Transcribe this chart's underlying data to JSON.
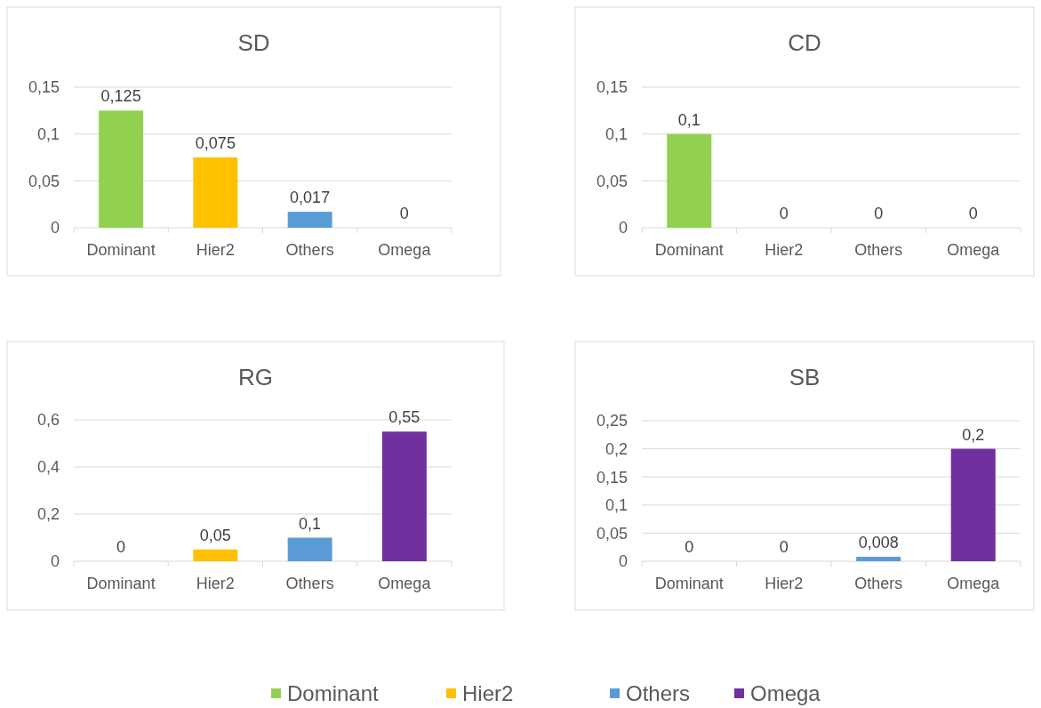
{
  "chart_data": [
    {
      "type": "bar",
      "title": "SD",
      "categories": [
        "Dominant",
        "Hier2",
        "Others",
        "Omega"
      ],
      "series": [
        {
          "name": "Dominant",
          "color": "#92d050",
          "values": [
            0.125,
            null,
            null,
            null
          ],
          "value_labels": [
            "0,125",
            null,
            null,
            null
          ]
        },
        {
          "name": "Hier2",
          "color": "#ffc000",
          "values": [
            null,
            0.075,
            null,
            null
          ],
          "value_labels": [
            null,
            "0,075",
            null,
            null
          ]
        },
        {
          "name": "Others",
          "color": "#5b9bd5",
          "values": [
            null,
            null,
            0.017,
            null
          ],
          "value_labels": [
            null,
            null,
            "0,017",
            null
          ]
        },
        {
          "name": "Omega",
          "color": "#7030a0",
          "values": [
            null,
            null,
            null,
            0
          ],
          "value_labels": [
            null,
            null,
            null,
            "0"
          ]
        }
      ],
      "ylim": [
        0,
        0.15
      ],
      "yticks": [
        {
          "value": 0,
          "label": "0"
        },
        {
          "value": 0.05,
          "label": "0,05"
        },
        {
          "value": 0.1,
          "label": "0,1"
        },
        {
          "value": 0.15,
          "label": "0,15"
        }
      ],
      "grid": "y",
      "legend": "bottom"
    },
    {
      "type": "bar",
      "title": "CD",
      "categories": [
        "Dominant",
        "Hier2",
        "Others",
        "Omega"
      ],
      "series": [
        {
          "color": "#92d050",
          "values": [
            0.1,
            null,
            null,
            null
          ],
          "value_labels": [
            "0,1",
            null,
            null,
            null
          ]
        },
        {
          "color": "#ffc000",
          "values": [
            null,
            0,
            null,
            null
          ],
          "value_labels": [
            null,
            "0",
            null,
            null
          ]
        },
        {
          "color": "#5b9bd5",
          "values": [
            null,
            null,
            0,
            null
          ],
          "value_labels": [
            null,
            null,
            "0",
            null
          ]
        },
        {
          "color": "#7030a0",
          "values": [
            null,
            null,
            null,
            0
          ],
          "value_labels": [
            null,
            null,
            null,
            "0"
          ]
        }
      ],
      "ylim": [
        0,
        0.15
      ],
      "yticks": [
        {
          "value": 0,
          "label": "0"
        },
        {
          "value": 0.05,
          "label": "0,05"
        },
        {
          "value": 0.1,
          "label": "0,1"
        },
        {
          "value": 0.15,
          "label": "0,15"
        }
      ],
      "grid": "y"
    },
    {
      "type": "bar",
      "title": "RG",
      "categories": [
        "Dominant",
        "Hier2",
        "Others",
        "Omega"
      ],
      "series": [
        {
          "color": "#92d050",
          "values": [
            0,
            null,
            null,
            null
          ],
          "value_labels": [
            "0",
            null,
            null,
            null
          ]
        },
        {
          "color": "#ffc000",
          "values": [
            null,
            0.05,
            null,
            null
          ],
          "value_labels": [
            null,
            "0,05",
            null,
            null
          ]
        },
        {
          "color": "#5b9bd5",
          "values": [
            null,
            null,
            0.1,
            null
          ],
          "value_labels": [
            null,
            null,
            "0,1",
            null
          ]
        },
        {
          "color": "#7030a0",
          "values": [
            null,
            null,
            null,
            0.55
          ],
          "value_labels": [
            null,
            null,
            null,
            "0,55"
          ]
        }
      ],
      "ylim": [
        0,
        0.6
      ],
      "yticks": [
        {
          "value": 0,
          "label": "0"
        },
        {
          "value": 0.2,
          "label": "0,2"
        },
        {
          "value": 0.4,
          "label": "0,4"
        },
        {
          "value": 0.6,
          "label": "0,6"
        }
      ],
      "grid": "y"
    },
    {
      "type": "bar",
      "title": "SB",
      "categories": [
        "Dominant",
        "Hier2",
        "Others",
        "Omega"
      ],
      "series": [
        {
          "color": "#92d050",
          "values": [
            0,
            null,
            null,
            null
          ],
          "value_labels": [
            "0",
            null,
            null,
            null
          ]
        },
        {
          "color": "#ffc000",
          "values": [
            null,
            0,
            null,
            null
          ],
          "value_labels": [
            null,
            "0",
            null,
            null
          ]
        },
        {
          "color": "#5b9bd5",
          "values": [
            null,
            null,
            0.008,
            null
          ],
          "value_labels": [
            null,
            null,
            "0,008",
            null
          ]
        },
        {
          "color": "#7030a0",
          "values": [
            null,
            null,
            null,
            0.2
          ],
          "value_labels": [
            null,
            null,
            null,
            "0,2"
          ]
        }
      ],
      "ylim": [
        0,
        0.25
      ],
      "yticks": [
        {
          "value": 0,
          "label": "0"
        },
        {
          "value": 0.05,
          "label": "0,05"
        },
        {
          "value": 0.1,
          "label": "0,1"
        },
        {
          "value": 0.15,
          "label": "0,15"
        },
        {
          "value": 0.2,
          "label": "0,2"
        },
        {
          "value": 0.25,
          "label": "0,25"
        }
      ],
      "grid": "y"
    }
  ]
}
